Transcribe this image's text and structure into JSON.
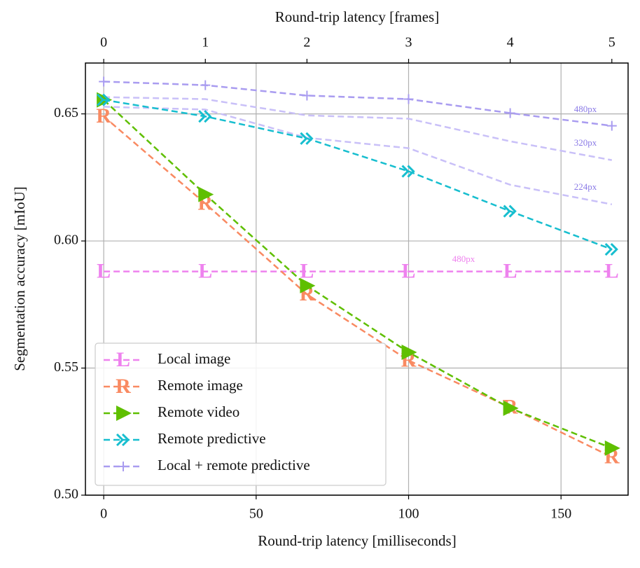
{
  "chart_data": {
    "type": "line",
    "xlabel": "Round-trip latency [milliseconds]",
    "x2label": "Round-trip latency [frames]",
    "ylabel": "Segmentation accuracy [mIoU]",
    "x": [
      0,
      33.33,
      66.67,
      100,
      133.33,
      166.67
    ],
    "xlim": [
      -6,
      172
    ],
    "xticks": [
      0,
      50,
      100,
      150
    ],
    "x2lim": [
      -0.18,
      5.16
    ],
    "x2ticks": [
      0,
      1,
      2,
      3,
      4,
      5
    ],
    "ylim": [
      0.5,
      0.67
    ],
    "yticks": [
      {
        "value": 0.5,
        "label": "0.50"
      },
      {
        "value": 0.55,
        "label": "0.55"
      },
      {
        "value": 0.6,
        "label": "0.60"
      },
      {
        "value": 0.65,
        "label": "0.65"
      }
    ],
    "grid": true,
    "legend": "lower left",
    "series": [
      {
        "name": "Local image",
        "color": "#ee82ee",
        "marker": "L",
        "values": [
          0.588,
          0.588,
          0.588,
          0.588,
          0.588,
          0.588
        ]
      },
      {
        "name": "Remote image",
        "color": "#f98a62",
        "marker": "R",
        "values": [
          0.649,
          0.6147,
          0.579,
          0.553,
          0.5345,
          0.515
        ]
      },
      {
        "name": "Remote video",
        "color": "#5fbf00",
        "marker": "triangle",
        "values": [
          0.6555,
          0.6183,
          0.5824,
          0.5562,
          0.5342,
          0.5185
        ]
      },
      {
        "name": "Remote predictive",
        "color": "#17becf",
        "marker": "chevron",
        "values": [
          0.6555,
          0.649,
          0.6403,
          0.6274,
          0.6117,
          0.5967
        ]
      },
      {
        "name": "Local + remote predictive",
        "color": "#a99cf0",
        "marker": "plus",
        "values": [
          0.6627,
          0.6613,
          0.6572,
          0.6558,
          0.6503,
          0.6453
        ]
      }
    ],
    "reference_lines": [
      {
        "label": "320px",
        "color": "#c9c0f8",
        "values": [
          0.6566,
          0.6558,
          0.6494,
          0.6481,
          0.6392,
          0.6318
        ]
      },
      {
        "label": "224px",
        "color": "#c9c0f8",
        "values": [
          0.6528,
          0.6517,
          0.6406,
          0.6365,
          0.6221,
          0.6144
        ]
      }
    ],
    "annotations": [
      {
        "text": "480px",
        "color": "#ee82ee"
      },
      {
        "text": "480px",
        "color": "#8a7ae6"
      }
    ],
    "reference_label_color": "#8a7ae6"
  }
}
